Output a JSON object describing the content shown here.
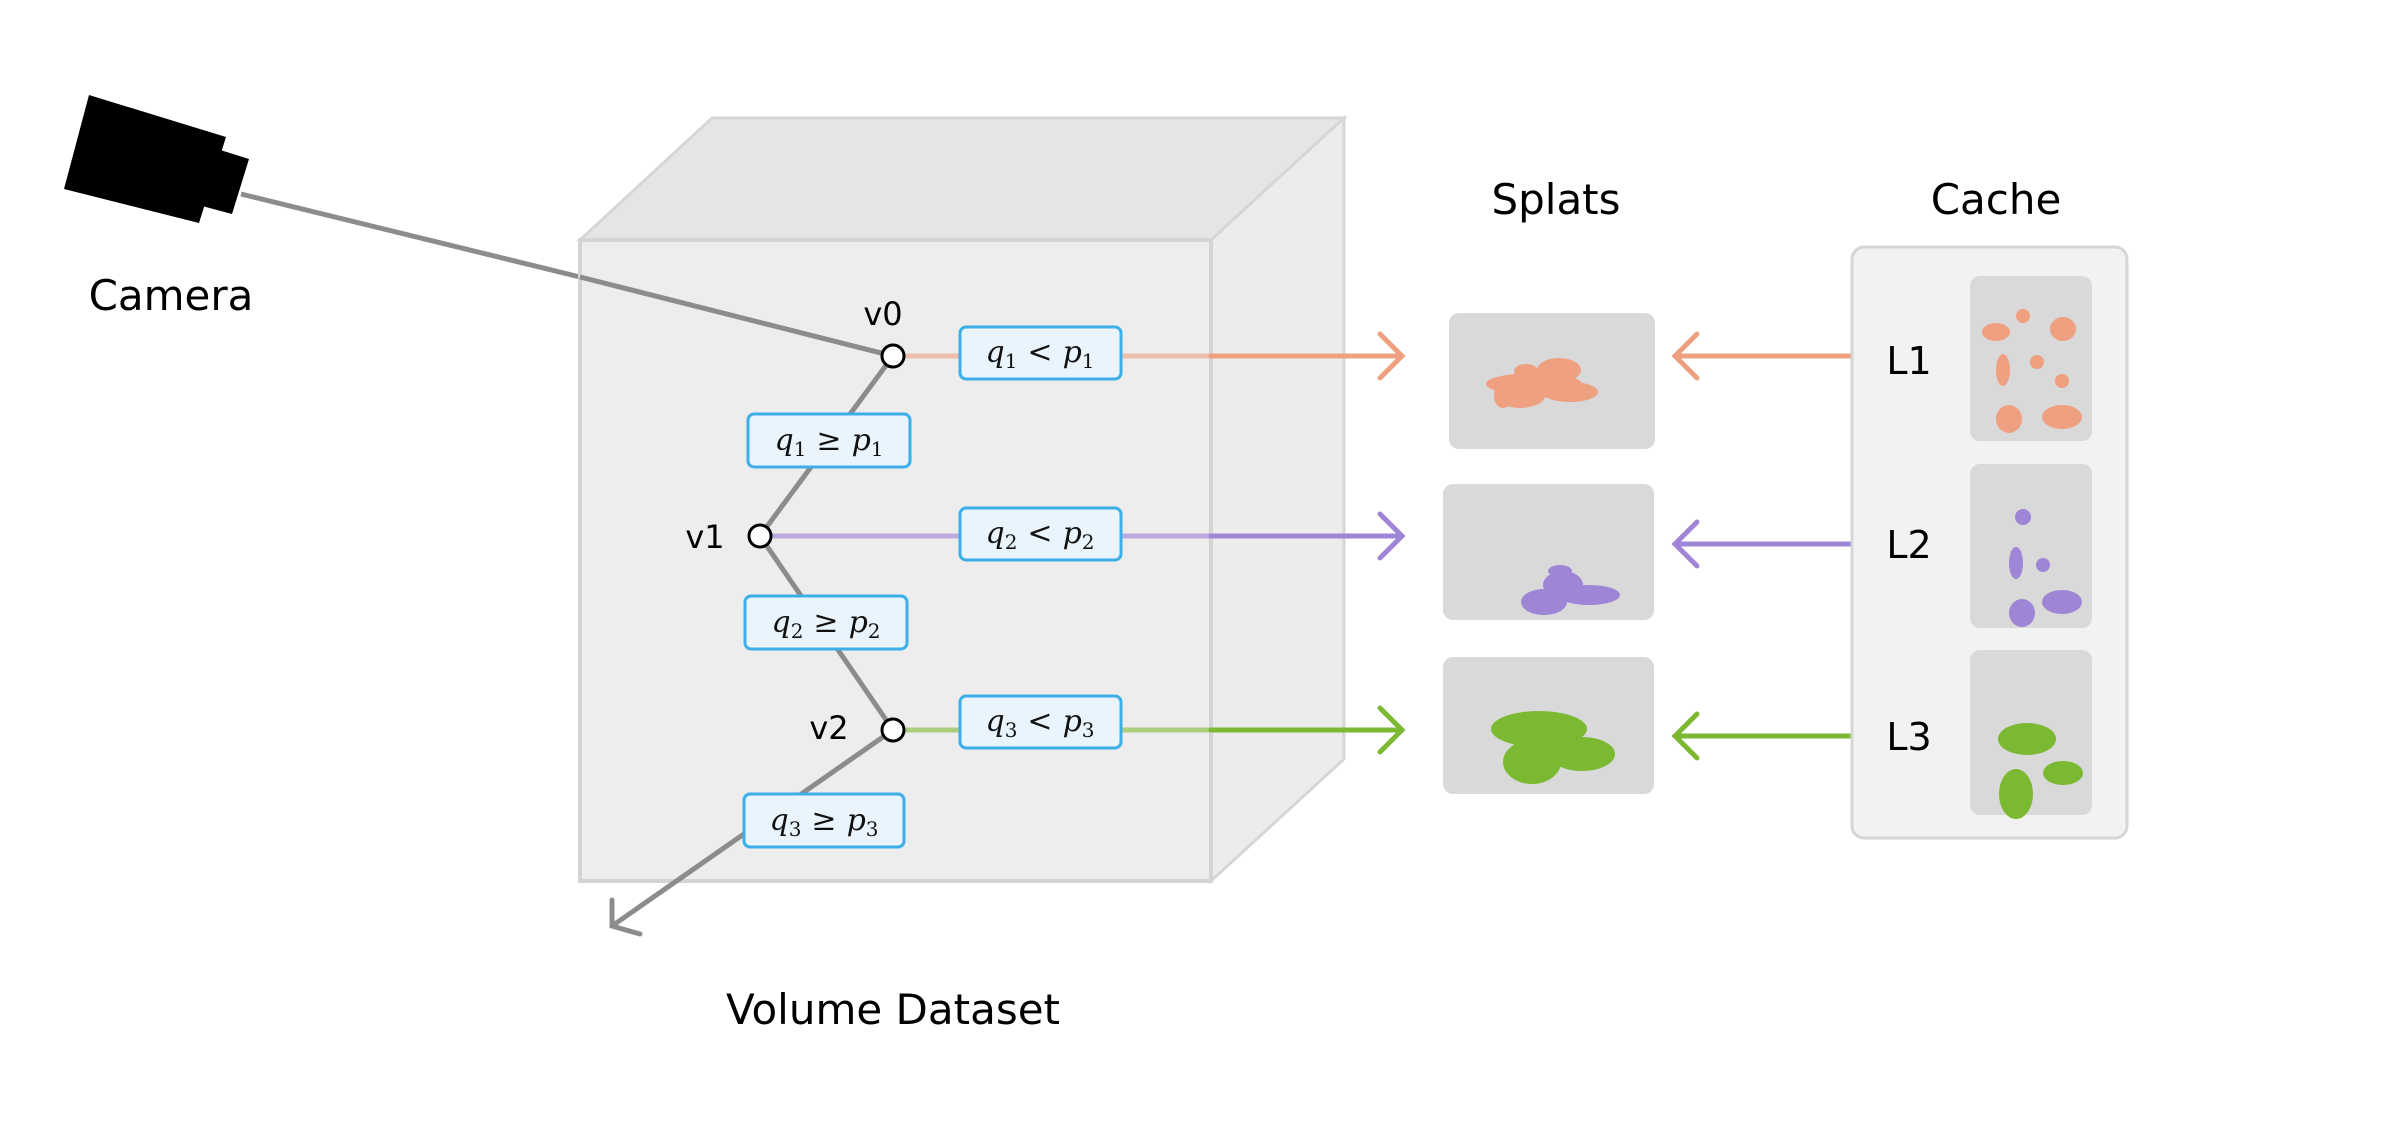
{
  "camera": {
    "label": "Camera"
  },
  "volume": {
    "label": "Volume Dataset"
  },
  "nodes": [
    {
      "label": "v0"
    },
    {
      "label": "v1"
    },
    {
      "label": "v2"
    }
  ],
  "conditions": {
    "less": [
      {
        "q": "q",
        "qsub": "1",
        "op": "<",
        "p": "p",
        "psub": "1"
      },
      {
        "q": "q",
        "qsub": "2",
        "op": "<",
        "p": "p",
        "psub": "2"
      },
      {
        "q": "q",
        "qsub": "3",
        "op": "<",
        "p": "p",
        "psub": "3"
      }
    ],
    "geq": [
      {
        "q": "q",
        "qsub": "1",
        "op": "≥",
        "p": "p",
        "psub": "1"
      },
      {
        "q": "q",
        "qsub": "2",
        "op": "≥",
        "p": "p",
        "psub": "2"
      },
      {
        "q": "q",
        "qsub": "3",
        "op": "≥",
        "p": "p",
        "psub": "3"
      }
    ]
  },
  "splats": {
    "title": "Splats"
  },
  "cache": {
    "title": "Cache",
    "levels": [
      {
        "label": "L1"
      },
      {
        "label": "L2"
      },
      {
        "label": "L3"
      }
    ]
  },
  "colors": {
    "level1": "#EFA080",
    "level2": "#9F85D6",
    "level3": "#7CB933",
    "condition_border": "#3DAEE9",
    "condition_fill": "#EAF4FD",
    "ray": "#8C8C8C"
  }
}
